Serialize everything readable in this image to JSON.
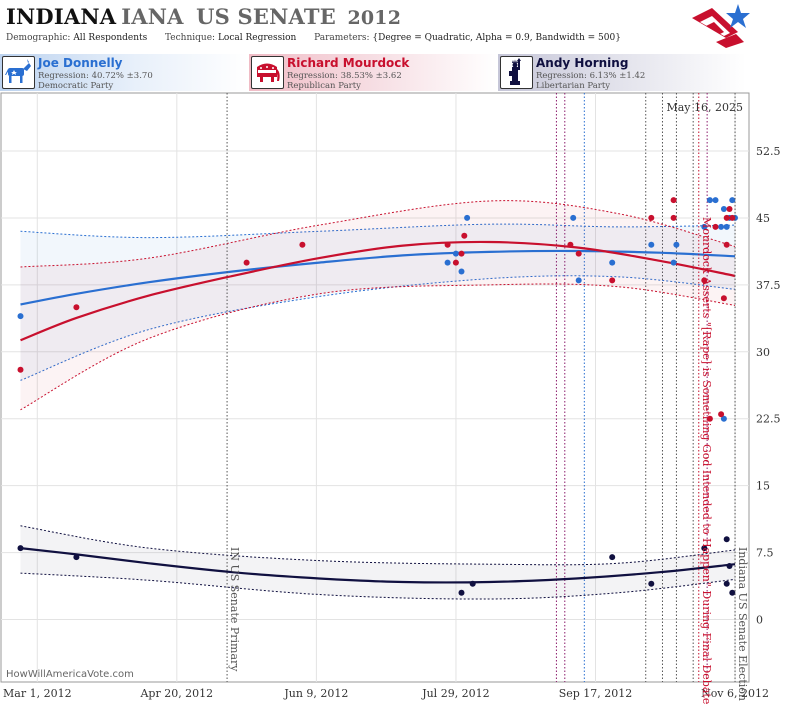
{
  "header": {
    "title_state": "INDIANA",
    "title_state_dup": "IANA",
    "title_race": "US SENATE",
    "title_year": "2012",
    "demographic_label": "Demographic:",
    "demographic_value": "All Respondents",
    "technique_label": "Technique:",
    "technique_value": "Local Regression",
    "parameters_label": "Parameters:",
    "parameters_value": "{Degree = Quadratic, Alpha = 0.9, Bandwidth = 500}"
  },
  "candidates": [
    {
      "name": "Joe Donnelly",
      "regression": "Regression: 40.72% ±3.70",
      "party": "Democratic Party",
      "color": "#2a6fd1",
      "icon": "donkey-icon"
    },
    {
      "name": "Richard Mourdock",
      "regression": "Regression: 38.53% ±3.62",
      "party": "Republican Party",
      "color": "#c8102e",
      "icon": "elephant-icon"
    },
    {
      "name": "Andy Horning",
      "regression": "Regression: 6.13% ±1.42",
      "party": "Libertarian Party",
      "color": "#101040",
      "icon": "liberty-icon"
    }
  ],
  "chart_data": {
    "type": "scatter",
    "date_stamp": "May 16, 2025",
    "x_ticks": [
      "Mar 1, 2012",
      "Apr 20, 2012",
      "Jun 9, 2012",
      "Jul 29, 2012",
      "Sep 17, 2012",
      "Nov 6, 2012"
    ],
    "xlim": [
      "2012-02-17",
      "2012-11-11"
    ],
    "y_ticks": [
      "0",
      "7.5",
      "15",
      "22.5",
      "30",
      "37.5",
      "45",
      "52.5"
    ],
    "ylim": [
      -7,
      59
    ],
    "grid": true,
    "events": [
      {
        "date": "2012-05-08",
        "label": "IN US Senate Primary",
        "color": "#555555"
      },
      {
        "date": "2012-10-24",
        "label": "Mourdock Asserts \"[Rape] is Something God Intended to Happen\" During Final Debate",
        "color": "#c8102e"
      },
      {
        "date": "2012-11-06",
        "label": "Indiana US Senate Election",
        "color": "#555555"
      }
    ],
    "extra_event_lines": [
      {
        "date": "2012-09-03",
        "color": "#8b1a6b"
      },
      {
        "date": "2012-09-06",
        "color": "#8b1a6b"
      },
      {
        "date": "2012-09-13",
        "color": "#2a6fd1"
      },
      {
        "date": "2012-10-05",
        "color": "#555555"
      },
      {
        "date": "2012-10-11",
        "color": "#555555"
      },
      {
        "date": "2012-10-16",
        "color": "#555555"
      },
      {
        "date": "2012-10-22",
        "color": "#555555"
      },
      {
        "date": "2012-10-27",
        "color": "#8b1a6b"
      }
    ],
    "series": [
      {
        "name": "Joe Donnelly",
        "color": "#2a6fd1",
        "points": [
          [
            "2012-02-24",
            34
          ],
          [
            "2012-07-26",
            40
          ],
          [
            "2012-07-29",
            41
          ],
          [
            "2012-07-31",
            39
          ],
          [
            "2012-08-02",
            45
          ],
          [
            "2012-09-09",
            45
          ],
          [
            "2012-09-11",
            38
          ],
          [
            "2012-09-23",
            40
          ],
          [
            "2012-10-07",
            42
          ],
          [
            "2012-10-15",
            40
          ],
          [
            "2012-10-16",
            42
          ],
          [
            "2012-10-26",
            44
          ],
          [
            "2012-10-28",
            47
          ],
          [
            "2012-10-30",
            47
          ],
          [
            "2012-11-01",
            44
          ],
          [
            "2012-11-02",
            22.5
          ],
          [
            "2012-11-03",
            44
          ],
          [
            "2012-11-04",
            45
          ],
          [
            "2012-11-05",
            47
          ],
          [
            "2012-11-06",
            45
          ],
          [
            "2012-11-02",
            46
          ]
        ],
        "trend": [
          [
            "2012-02-24",
            35.3
          ],
          [
            "2012-03-15",
            36.5
          ],
          [
            "2012-04-10",
            37.8
          ],
          [
            "2012-05-10",
            39.0
          ],
          [
            "2012-06-10",
            40.0
          ],
          [
            "2012-07-10",
            40.8
          ],
          [
            "2012-08-10",
            41.2
          ],
          [
            "2012-09-10",
            41.3
          ],
          [
            "2012-10-10",
            41.1
          ],
          [
            "2012-11-06",
            40.7
          ]
        ],
        "band_upper": [
          [
            "2012-02-24",
            43.5
          ],
          [
            "2012-04-10",
            42.8
          ],
          [
            "2012-06-10",
            43.5
          ],
          [
            "2012-08-10",
            44.3
          ],
          [
            "2012-09-25",
            44.0
          ],
          [
            "2012-11-06",
            44.2
          ]
        ],
        "band_lower": [
          [
            "2012-02-24",
            26.8
          ],
          [
            "2012-04-10",
            32.5
          ],
          [
            "2012-06-10",
            36.2
          ],
          [
            "2012-08-10",
            38.2
          ],
          [
            "2012-09-25",
            38.4
          ],
          [
            "2012-11-06",
            37.0
          ]
        ]
      },
      {
        "name": "Richard Mourdock",
        "color": "#c8102e",
        "points": [
          [
            "2012-02-24",
            28
          ],
          [
            "2012-03-15",
            35
          ],
          [
            "2012-05-15",
            40
          ],
          [
            "2012-06-04",
            42
          ],
          [
            "2012-07-26",
            42
          ],
          [
            "2012-07-29",
            40
          ],
          [
            "2012-07-31",
            41
          ],
          [
            "2012-08-01",
            43
          ],
          [
            "2012-09-08",
            42
          ],
          [
            "2012-09-11",
            41
          ],
          [
            "2012-09-23",
            38
          ],
          [
            "2012-10-07",
            45
          ],
          [
            "2012-10-15",
            47
          ],
          [
            "2012-10-15",
            45
          ],
          [
            "2012-10-26",
            38
          ],
          [
            "2012-10-28",
            22.5
          ],
          [
            "2012-10-30",
            44
          ],
          [
            "2012-11-01",
            23
          ],
          [
            "2012-11-02",
            36
          ],
          [
            "2012-11-03",
            42
          ],
          [
            "2012-11-04",
            46
          ],
          [
            "2012-11-05",
            45
          ],
          [
            "2012-11-03",
            45
          ]
        ],
        "trend": [
          [
            "2012-02-24",
            31.3
          ],
          [
            "2012-03-15",
            33.8
          ],
          [
            "2012-04-10",
            36.3
          ],
          [
            "2012-05-10",
            38.5
          ],
          [
            "2012-06-10",
            40.5
          ],
          [
            "2012-07-10",
            41.9
          ],
          [
            "2012-08-10",
            42.3
          ],
          [
            "2012-09-10",
            41.7
          ],
          [
            "2012-10-10",
            40.2
          ],
          [
            "2012-11-06",
            38.5
          ]
        ],
        "band_upper": [
          [
            "2012-02-24",
            39.5
          ],
          [
            "2012-04-10",
            40.5
          ],
          [
            "2012-06-10",
            44.2
          ],
          [
            "2012-08-10",
            46.9
          ],
          [
            "2012-09-25",
            45.5
          ],
          [
            "2012-11-06",
            41.8
          ]
        ],
        "band_lower": [
          [
            "2012-02-24",
            23.5
          ],
          [
            "2012-04-10",
            31.5
          ],
          [
            "2012-06-10",
            36.5
          ],
          [
            "2012-08-10",
            37.5
          ],
          [
            "2012-09-25",
            37.3
          ],
          [
            "2012-11-06",
            35.2
          ]
        ]
      },
      {
        "name": "Andy Horning",
        "color": "#101040",
        "points": [
          [
            "2012-02-24",
            8
          ],
          [
            "2012-03-15",
            7
          ],
          [
            "2012-07-31",
            3
          ],
          [
            "2012-08-04",
            4
          ],
          [
            "2012-09-23",
            7
          ],
          [
            "2012-10-07",
            4
          ],
          [
            "2012-10-26",
            8
          ],
          [
            "2012-11-03",
            9
          ],
          [
            "2012-11-04",
            6
          ],
          [
            "2012-11-05",
            3
          ],
          [
            "2012-11-03",
            4
          ]
        ],
        "trend": [
          [
            "2012-02-24",
            8.0
          ],
          [
            "2012-03-15",
            7.3
          ],
          [
            "2012-04-10",
            6.3
          ],
          [
            "2012-05-10",
            5.3
          ],
          [
            "2012-06-10",
            4.6
          ],
          [
            "2012-07-10",
            4.2
          ],
          [
            "2012-08-10",
            4.2
          ],
          [
            "2012-09-10",
            4.6
          ],
          [
            "2012-10-10",
            5.3
          ],
          [
            "2012-11-06",
            6.2
          ]
        ],
        "band_upper": [
          [
            "2012-02-24",
            10.5
          ],
          [
            "2012-04-10",
            8.0
          ],
          [
            "2012-06-10",
            6.6
          ],
          [
            "2012-08-10",
            6.2
          ],
          [
            "2012-09-25",
            6.3
          ],
          [
            "2012-11-06",
            7.8
          ]
        ],
        "band_lower": [
          [
            "2012-02-24",
            5.2
          ],
          [
            "2012-04-10",
            4.4
          ],
          [
            "2012-06-10",
            2.8
          ],
          [
            "2012-08-10",
            2.3
          ],
          [
            "2012-09-25",
            3.0
          ],
          [
            "2012-11-06",
            4.5
          ]
        ]
      }
    ]
  },
  "footer": {
    "credit": "HowWillAmericaVote.com"
  }
}
